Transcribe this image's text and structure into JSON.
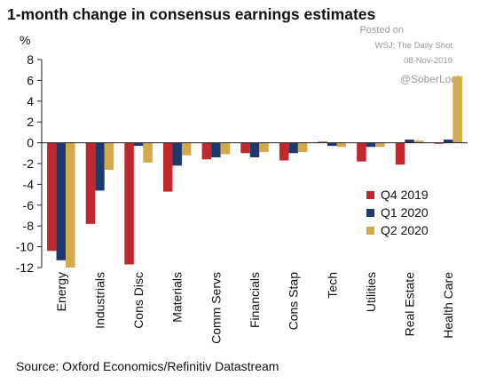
{
  "title": "1-month change in consensus earnings estimates",
  "unit_label": "%",
  "watermark": {
    "posted_on": "Posted on",
    "source_site": "WSJ: The Daily Shot",
    "date": "08-Nov-2019",
    "handle": "@SoberLook"
  },
  "source": "Source: Oxford Economics/Refinitiv Datastream",
  "colors": {
    "q4_2019": "#c0282d",
    "q1_2020": "#1d3a6e",
    "q2_2020": "#d4a94a",
    "axis": "#222222",
    "text": "#111111"
  },
  "chart_data": {
    "type": "bar",
    "title": "1-month change in consensus earnings estimates",
    "ylabel": "%",
    "ylim": [
      -12,
      8
    ],
    "yticks": [
      8,
      6,
      4,
      2,
      0,
      -2,
      -4,
      -6,
      -8,
      -10,
      -12
    ],
    "grid": false,
    "legend_position": "lower-right",
    "categories": [
      "Energy",
      "Industrials",
      "Cons Disc",
      "Materials",
      "Comm Servs",
      "Financials",
      "Cons Stap",
      "Tech",
      "Utilities",
      "Real Estate",
      "Health Care"
    ],
    "series": [
      {
        "name": "Q4 2019",
        "color": "#c0282d",
        "values": [
          -10.4,
          -7.8,
          -11.7,
          -4.7,
          -1.6,
          -1.0,
          -1.7,
          0.1,
          -1.8,
          -2.1,
          -0.1
        ]
      },
      {
        "name": "Q1 2020",
        "color": "#1d3a6e",
        "values": [
          -11.3,
          -4.6,
          -0.3,
          -2.2,
          -1.4,
          -1.4,
          -1.0,
          -0.3,
          -0.4,
          0.3,
          0.3
        ]
      },
      {
        "name": "Q2 2020",
        "color": "#d4a94a",
        "values": [
          -12.0,
          -2.6,
          -1.9,
          -1.2,
          -1.1,
          -0.9,
          -0.9,
          -0.4,
          -0.4,
          0.2,
          6.4
        ]
      }
    ]
  }
}
